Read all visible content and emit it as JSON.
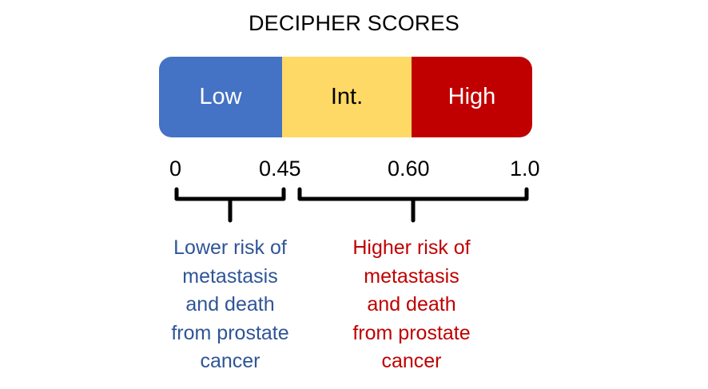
{
  "title": "DECIPHER SCORES",
  "scale": {
    "segments": [
      {
        "label": "Low",
        "from": 0.0,
        "to": 0.45,
        "color": "#4472C4"
      },
      {
        "label": "Int.",
        "from": 0.45,
        "to": 0.6,
        "color": "#FFD966"
      },
      {
        "label": "High",
        "from": 0.6,
        "to": 1.0,
        "color": "#C00000"
      }
    ],
    "ticks": [
      "0",
      "0.45",
      "0.60",
      "1.0"
    ]
  },
  "notes": {
    "lower": {
      "text": "Lower risk of\nmetastasis\nand death\nfrom prostate\ncancer",
      "color": "#2F5597"
    },
    "higher": {
      "text": "Higher risk of\nmetastasis\nand death\nfrom prostate\ncancer",
      "color": "#C00000"
    }
  }
}
